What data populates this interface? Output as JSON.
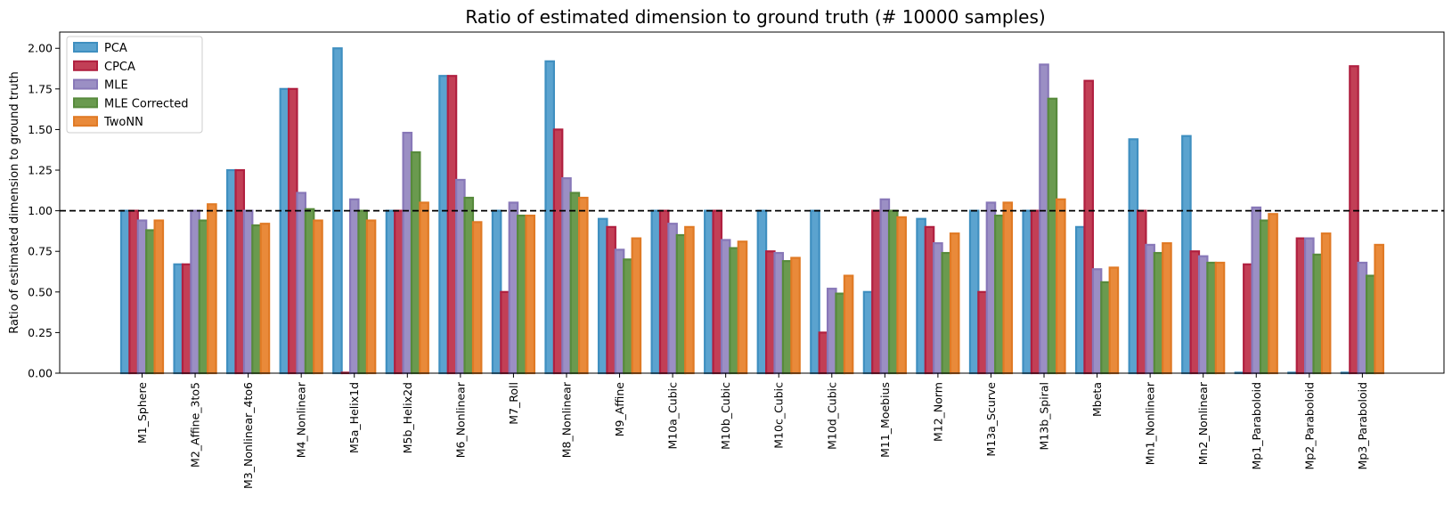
{
  "chart_data": {
    "type": "bar",
    "title": "Ratio of estimated dimension to ground truth (# 10000 samples)",
    "xlabel": "",
    "ylabel": "Ratio of estimated dimension to ground truth",
    "ylim": [
      0,
      2.1
    ],
    "yticks": [
      "0.00",
      "0.25",
      "0.50",
      "0.75",
      "1.00",
      "1.25",
      "1.50",
      "1.75",
      "2.00"
    ],
    "reference_line": 1.0,
    "grid": false,
    "legend_position": "top-left",
    "categories": [
      "M1_Sphere",
      "M2_Affine_3to5",
      "M3_Nonlinear_4to6",
      "M4_Nonlinear",
      "M5a_Helix1d",
      "M5b_Helix2d",
      "M6_Nonlinear",
      "M7_Roll",
      "M8_Nonlinear",
      "M9_Affine",
      "M10a_Cubic",
      "M10b_Cubic",
      "M10c_Cubic",
      "M10d_Cubic",
      "M11_Moebius",
      "M12_Norm",
      "M13a_Scurve",
      "M13b_Spiral",
      "Mbeta",
      "Mn1_Nonlinear",
      "Mn2_Nonlinear",
      "Mp1_Paraboloid",
      "Mp2_Paraboloid",
      "Mp3_Paraboloid"
    ],
    "series": [
      {
        "name": "PCA",
        "color": "#5ba3cf",
        "edge": "#3f8fc0",
        "values": [
          1.0,
          0.67,
          1.25,
          1.75,
          2.0,
          1.0,
          1.83,
          1.0,
          1.92,
          0.95,
          1.0,
          1.0,
          1.0,
          1.0,
          0.5,
          0.95,
          1.0,
          1.0,
          0.9,
          1.44,
          1.46,
          0.0,
          0.0,
          0.0
        ]
      },
      {
        "name": "CPCA",
        "color": "#c23f56",
        "edge": "#b02040",
        "values": [
          1.0,
          0.67,
          1.25,
          1.75,
          0.0,
          1.0,
          1.83,
          0.5,
          1.5,
          0.9,
          1.0,
          1.0,
          0.75,
          0.25,
          1.0,
          0.9,
          0.5,
          1.0,
          1.8,
          1.0,
          0.75,
          0.67,
          0.83,
          1.89
        ]
      },
      {
        "name": "MLE",
        "color": "#9b8fc4",
        "edge": "#8878b8",
        "values": [
          0.94,
          1.0,
          1.0,
          1.11,
          1.07,
          1.48,
          1.19,
          1.05,
          1.2,
          0.76,
          0.92,
          0.82,
          0.74,
          0.52,
          1.07,
          0.8,
          1.05,
          1.9,
          0.64,
          0.79,
          0.72,
          1.02,
          0.83,
          0.68
        ]
      },
      {
        "name": "MLE Corrected",
        "color": "#6a9a4f",
        "edge": "#578a3c",
        "values": [
          0.88,
          0.94,
          0.91,
          1.01,
          1.0,
          1.36,
          1.08,
          0.97,
          1.11,
          0.7,
          0.85,
          0.77,
          0.69,
          0.49,
          1.0,
          0.74,
          0.97,
          1.69,
          0.56,
          0.74,
          0.68,
          0.94,
          0.73,
          0.6
        ]
      },
      {
        "name": "TwoNN",
        "color": "#e98a3a",
        "edge": "#e07a25",
        "values": [
          0.94,
          1.04,
          0.92,
          0.94,
          0.94,
          1.05,
          0.93,
          0.97,
          1.08,
          0.83,
          0.9,
          0.81,
          0.71,
          0.6,
          0.96,
          0.86,
          1.05,
          1.07,
          0.65,
          0.8,
          0.68,
          0.98,
          0.86,
          0.79
        ]
      }
    ]
  }
}
